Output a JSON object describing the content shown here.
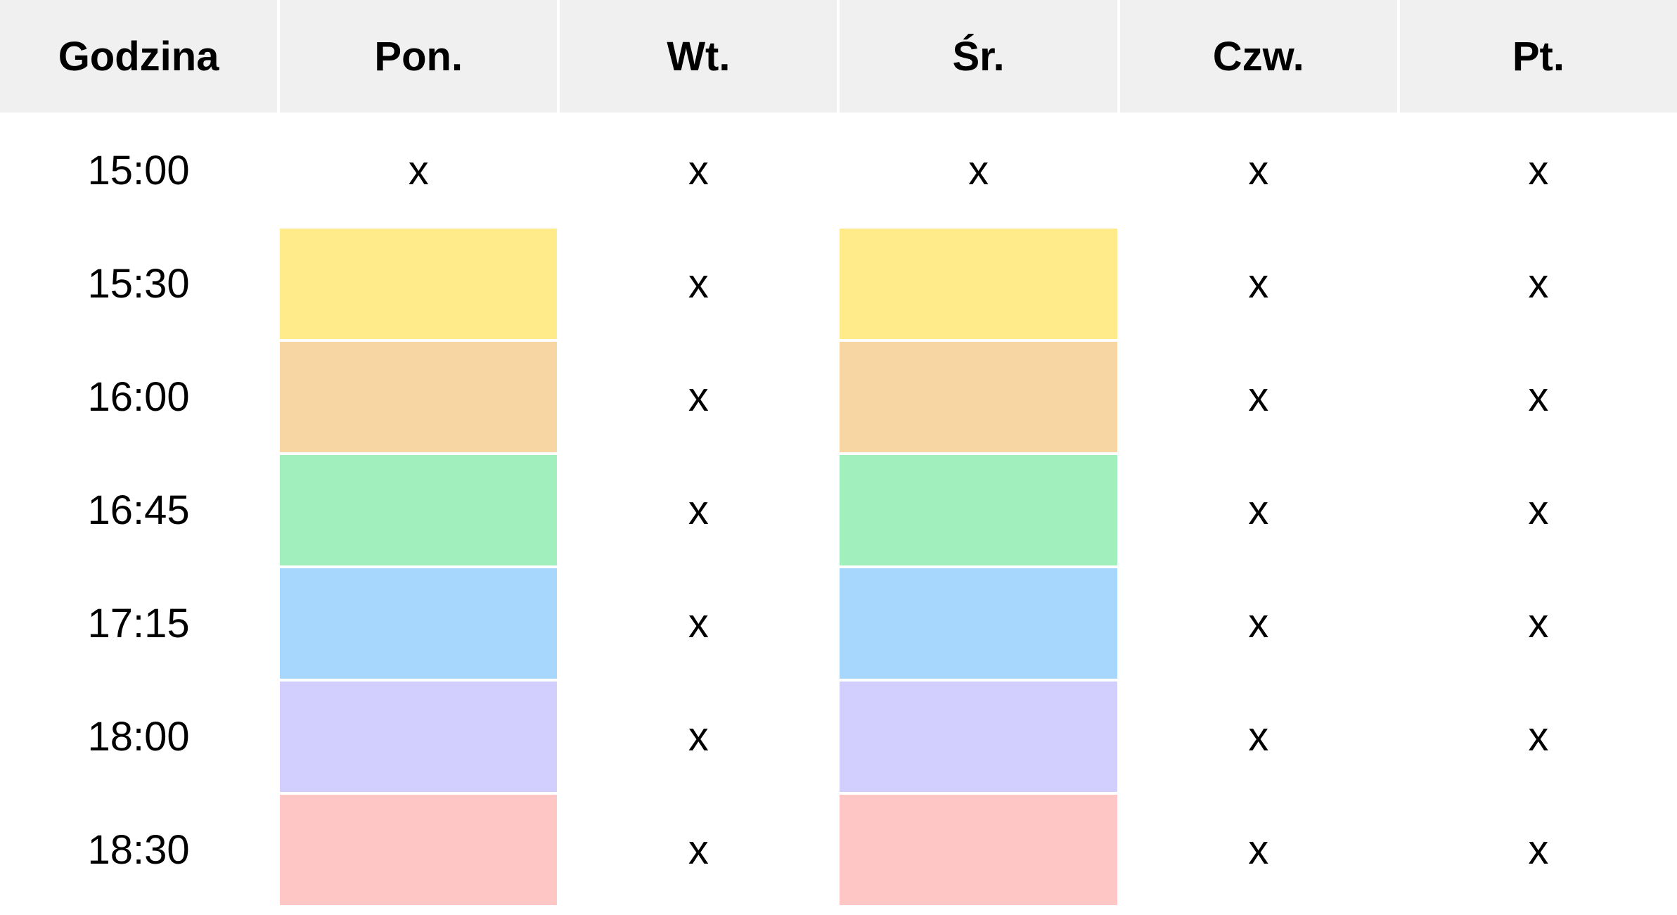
{
  "header": {
    "columns": [
      "Godzina",
      "Pon.",
      "Wt.",
      "Śr.",
      "Czw.",
      "Pt."
    ]
  },
  "colors": {
    "header_bg": "#f0f0f0",
    "slot_colors": [
      "#ffeb8a",
      "#f7d6a4",
      "#a1efbc",
      "#a8d7fd",
      "#d2cefd",
      "#fec6c4"
    ]
  },
  "rows": [
    {
      "time": "15:00",
      "cells": [
        "x",
        "x",
        "x",
        "x",
        "x"
      ],
      "color": null
    },
    {
      "time": "15:30",
      "cells": [
        "",
        "x",
        "",
        "x",
        "x"
      ],
      "color": "#ffeb8a"
    },
    {
      "time": "16:00",
      "cells": [
        "",
        "x",
        "",
        "x",
        "x"
      ],
      "color": "#f7d6a4"
    },
    {
      "time": "16:45",
      "cells": [
        "",
        "x",
        "",
        "x",
        "x"
      ],
      "color": "#a1efbc"
    },
    {
      "time": "17:15",
      "cells": [
        "",
        "x",
        "",
        "x",
        "x"
      ],
      "color": "#a8d7fd"
    },
    {
      "time": "18:00",
      "cells": [
        "",
        "x",
        "",
        "x",
        "x"
      ],
      "color": "#d2cefd"
    },
    {
      "time": "18:30",
      "cells": [
        "",
        "x",
        "",
        "x",
        "x"
      ],
      "color": "#fec6c4"
    }
  ]
}
